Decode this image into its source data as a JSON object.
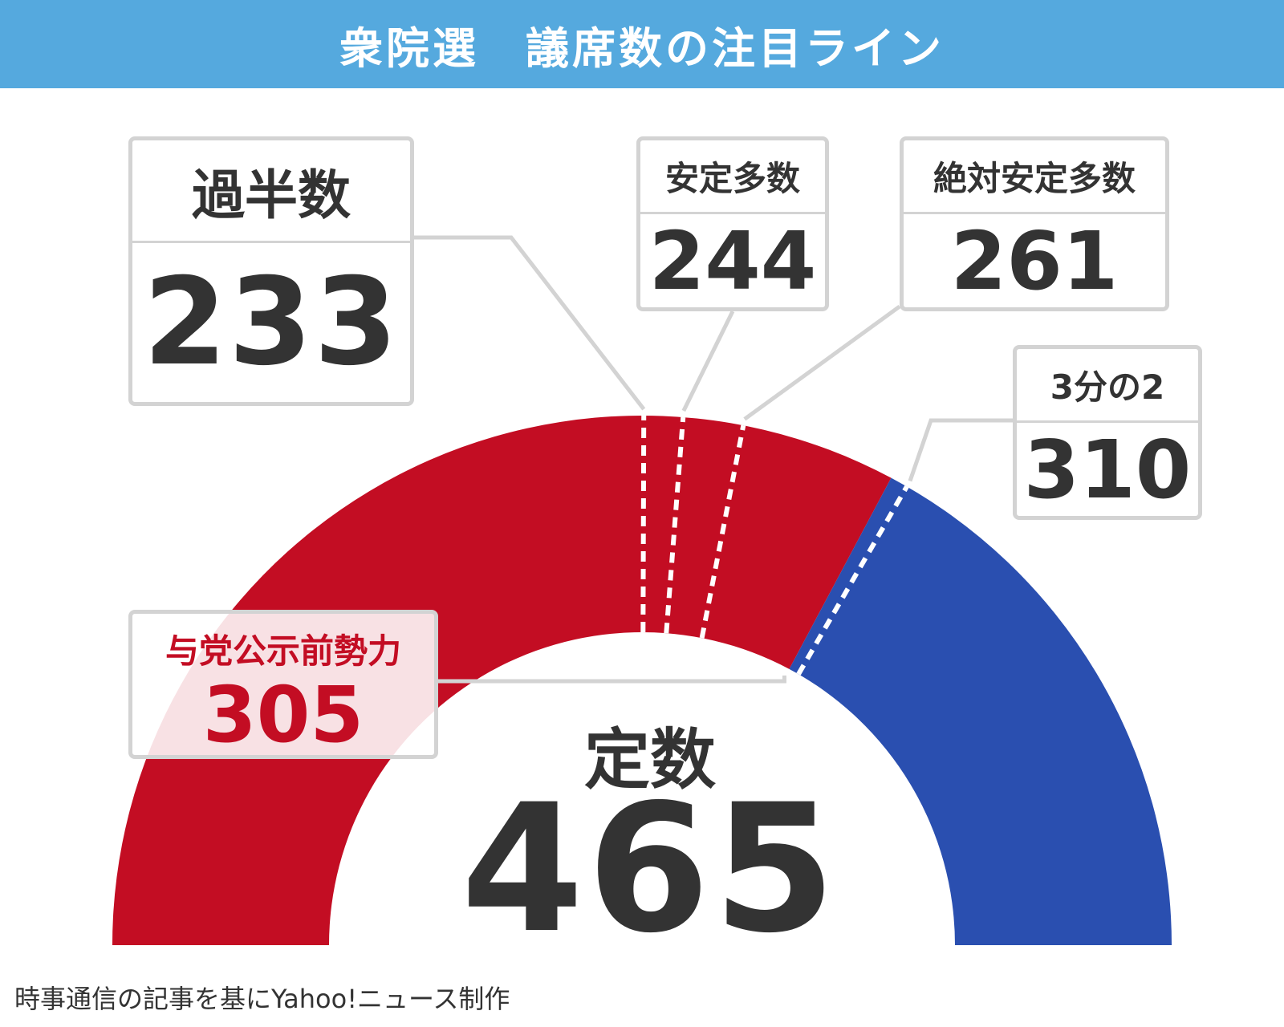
{
  "header": {
    "title": "衆院選　議席数の注目ライン"
  },
  "chart_data": {
    "type": "semicircle",
    "total": 465,
    "ruling_seats": 305,
    "colors": {
      "ruling": "#c30d23",
      "others": "#2a4fb0",
      "header": "#55a9de"
    },
    "thresholds": [
      {
        "label": "過半数",
        "value": 233
      },
      {
        "label": "安定多数",
        "value": 244
      },
      {
        "label": "絶対安定多数",
        "value": 261
      },
      {
        "label": "3分の2",
        "value": 310
      }
    ]
  },
  "boxes": {
    "majority": {
      "label": "過半数",
      "value": "233"
    },
    "stable": {
      "label": "安定多数",
      "value": "244"
    },
    "absolute": {
      "label": "絶対安定多数",
      "value": "261"
    },
    "two_thirds": {
      "label": "3分の2",
      "value": "310"
    },
    "ruling": {
      "label": "与党公示前勢力",
      "value": "305"
    }
  },
  "center": {
    "label": "定数",
    "value": "465"
  },
  "footer": {
    "credit": "時事通信の記事を基にYahoo!ニュース制作"
  }
}
